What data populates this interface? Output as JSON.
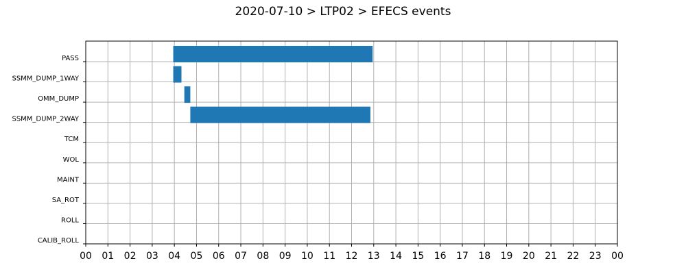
{
  "chart_data": {
    "type": "bar",
    "orientation": "horizontal-gantt",
    "title": "2020-07-10 > LTP02 > EFECS events",
    "xlabel": "",
    "ylabel": "",
    "x_range_hours": [
      0,
      24
    ],
    "x_tick_labels": [
      "00",
      "01",
      "02",
      "03",
      "04",
      "05",
      "06",
      "07",
      "08",
      "09",
      "10",
      "11",
      "12",
      "13",
      "14",
      "15",
      "16",
      "17",
      "18",
      "19",
      "20",
      "21",
      "22",
      "23",
      "00"
    ],
    "categories": [
      "PASS",
      "SSMM_DUMP_1WAY",
      "OMM_DUMP",
      "SSMM_DUMP_2WAY",
      "TCM",
      "WOL",
      "MAINT",
      "SA_ROT",
      "ROLL",
      "CALIB_ROLL"
    ],
    "events": [
      {
        "category": "PASS",
        "start": 3.95,
        "end": 12.95
      },
      {
        "category": "SSMM_DUMP_1WAY",
        "start": 3.95,
        "end": 4.32
      },
      {
        "category": "OMM_DUMP",
        "start": 4.45,
        "end": 4.72
      },
      {
        "category": "SSMM_DUMP_2WAY",
        "start": 4.72,
        "end": 12.85
      }
    ],
    "bar_color": "#1f77b4",
    "grid": true
  }
}
